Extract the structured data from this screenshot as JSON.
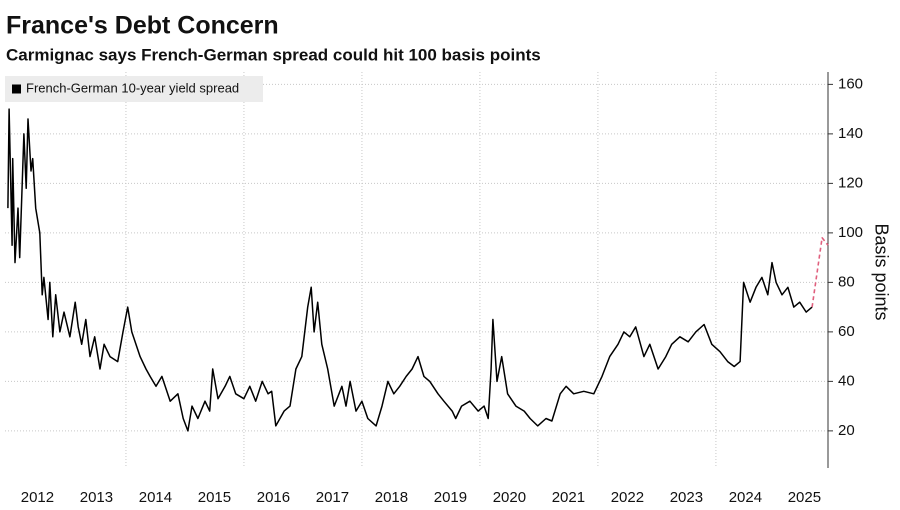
{
  "chart_data": {
    "type": "line",
    "title": "France's Debt Concern",
    "subtitle": "Carmignac says French-German spread could hit 100 basis points",
    "ylabel": "Basis points",
    "legend": "upper left",
    "grid": true,
    "xlim": [
      2011.95,
      2025.9
    ],
    "xticks": [
      2012,
      2013,
      2014,
      2015,
      2016,
      2017,
      2018,
      2019,
      2020,
      2021,
      2022,
      2023,
      2024,
      2025
    ],
    "ylim": [
      5,
      165
    ],
    "yticks": [
      20,
      40,
      60,
      80,
      100,
      120,
      140,
      160
    ],
    "x": [
      2012.0,
      2012.02,
      2012.07,
      2012.08,
      2012.12,
      2012.17,
      2012.2,
      2012.27,
      2012.31,
      2012.34,
      2012.39,
      2012.42,
      2012.47,
      2012.54,
      2012.58,
      2012.61,
      2012.68,
      2012.71,
      2012.76,
      2012.81,
      2012.88,
      2012.95,
      2013.05,
      2013.14,
      2013.19,
      2013.25,
      2013.32,
      2013.39,
      2013.47,
      2013.56,
      2013.63,
      2013.73,
      2013.86,
      2013.95,
      2014.03,
      2014.1,
      2014.24,
      2014.34,
      2014.41,
      2014.51,
      2014.61,
      2014.75,
      2014.88,
      2014.97,
      2015.05,
      2015.12,
      2015.22,
      2015.34,
      2015.42,
      2015.47,
      2015.56,
      2015.68,
      2015.76,
      2015.86,
      2016.0,
      2016.1,
      2016.2,
      2016.31,
      2016.41,
      2016.47,
      2016.54,
      2016.68,
      2016.78,
      2016.88,
      2016.98,
      2017.08,
      2017.14,
      2017.19,
      2017.25,
      2017.32,
      2017.42,
      2017.53,
      2017.66,
      2017.73,
      2017.8,
      2017.9,
      2018.0,
      2018.1,
      2018.24,
      2018.34,
      2018.44,
      2018.54,
      2018.64,
      2018.75,
      2018.85,
      2018.95,
      2019.05,
      2019.15,
      2019.29,
      2019.39,
      2019.53,
      2019.59,
      2019.69,
      2019.83,
      2019.97,
      2020.07,
      2020.14,
      2020.19,
      2020.22,
      2020.29,
      2020.37,
      2020.47,
      2020.61,
      2020.75,
      2020.85,
      2020.98,
      2021.12,
      2021.22,
      2021.36,
      2021.46,
      2021.59,
      2021.76,
      2021.93,
      2022.07,
      2022.2,
      2022.34,
      2022.44,
      2022.54,
      2022.64,
      2022.78,
      2022.88,
      2023.02,
      2023.15,
      2023.25,
      2023.39,
      2023.53,
      2023.66,
      2023.8,
      2023.93,
      2024.07,
      2024.2,
      2024.31,
      2024.41,
      2024.47,
      2024.58,
      2024.68,
      2024.78,
      2024.88,
      2024.95,
      2025.02,
      2025.12,
      2025.22,
      2025.32,
      2025.42,
      2025.53,
      2025.63,
      2025.8,
      2025.9
    ],
    "series": [
      {
        "name": "French-German 10-year yield spread",
        "color": "#000000",
        "dashed": false,
        "values": [
          110,
          150,
          95,
          130,
          88,
          110,
          90,
          140,
          118,
          146,
          125,
          130,
          110,
          100,
          75,
          82,
          65,
          80,
          58,
          75,
          60,
          68,
          58,
          72,
          62,
          55,
          65,
          50,
          58,
          45,
          55,
          50,
          48,
          60,
          70,
          60,
          50,
          45,
          42,
          38,
          42,
          32,
          35,
          25,
          20,
          30,
          25,
          32,
          28,
          45,
          33,
          38,
          42,
          35,
          33,
          38,
          32,
          40,
          35,
          36,
          22,
          28,
          30,
          45,
          50,
          70,
          78,
          60,
          72,
          55,
          45,
          30,
          38,
          30,
          40,
          28,
          32,
          25,
          22,
          30,
          40,
          35,
          38,
          42,
          45,
          50,
          42,
          40,
          35,
          32,
          28,
          25,
          30,
          32,
          28,
          30,
          25,
          45,
          65,
          40,
          50,
          35,
          30,
          28,
          25,
          22,
          25,
          24,
          35,
          38,
          35,
          36,
          35,
          42,
          50,
          55,
          60,
          58,
          62,
          50,
          55,
          45,
          50,
          55,
          58,
          56,
          60,
          63,
          55,
          52,
          48,
          46,
          48,
          80,
          72,
          78,
          82,
          75,
          88,
          80,
          75,
          78,
          70,
          72,
          68,
          70,
          null,
          null
        ]
      },
      {
        "color": "#e0607e",
        "dashed": true,
        "values": [
          null,
          null,
          null,
          null,
          null,
          null,
          null,
          null,
          null,
          null,
          null,
          null,
          null,
          null,
          null,
          null,
          null,
          null,
          null,
          null,
          null,
          null,
          null,
          null,
          null,
          null,
          null,
          null,
          null,
          null,
          null,
          null,
          null,
          null,
          null,
          null,
          null,
          null,
          null,
          null,
          null,
          null,
          null,
          null,
          null,
          null,
          null,
          null,
          null,
          null,
          null,
          null,
          null,
          null,
          null,
          null,
          null,
          null,
          null,
          null,
          null,
          null,
          null,
          null,
          null,
          null,
          null,
          null,
          null,
          null,
          null,
          null,
          null,
          null,
          null,
          null,
          null,
          null,
          null,
          null,
          null,
          null,
          null,
          null,
          null,
          null,
          null,
          null,
          null,
          null,
          null,
          null,
          null,
          null,
          null,
          null,
          null,
          null,
          null,
          null,
          null,
          null,
          null,
          null,
          null,
          null,
          null,
          null,
          null,
          null,
          null,
          null,
          null,
          null,
          null,
          null,
          null,
          null,
          null,
          null,
          null,
          null,
          null,
          null,
          null,
          null,
          null,
          null,
          null,
          null,
          null,
          null,
          null,
          null,
          null,
          null,
          null,
          null,
          null,
          null,
          null,
          null,
          null,
          null,
          null,
          70,
          98,
          95
        ]
      }
    ]
  }
}
